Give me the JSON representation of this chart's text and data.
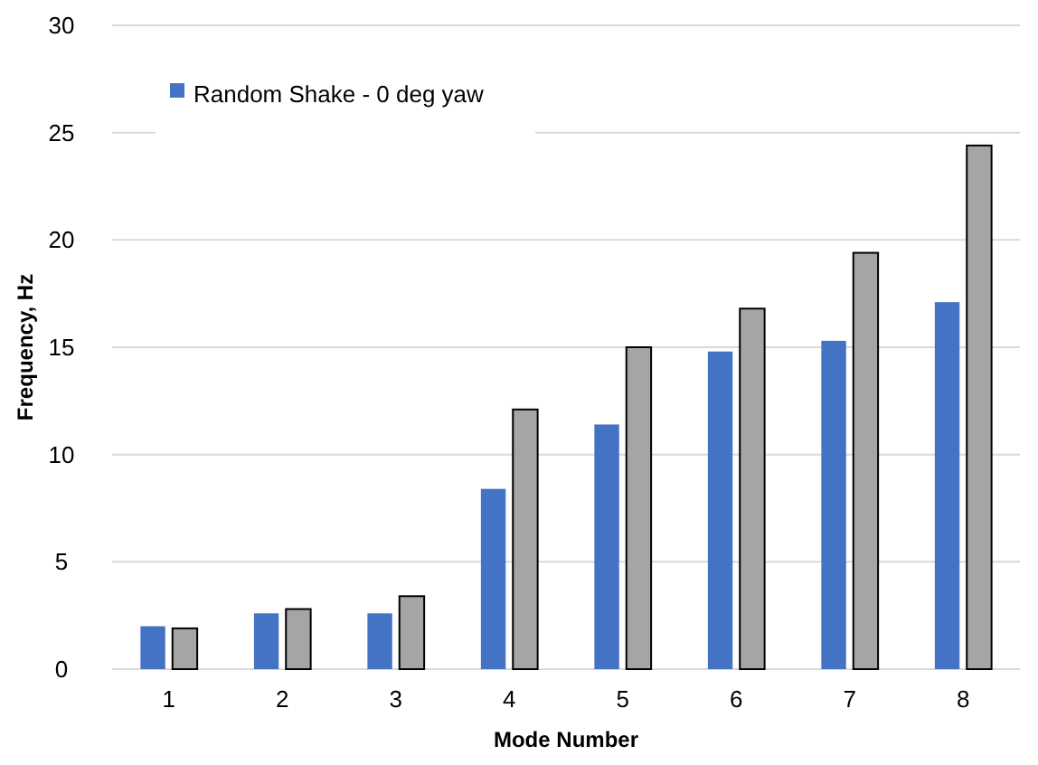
{
  "chart_data": {
    "type": "bar",
    "xlabel": "Mode Number",
    "ylabel": "Frequency, Hz",
    "categories": [
      "1",
      "2",
      "3",
      "4",
      "5",
      "6",
      "7",
      "8"
    ],
    "series": [
      {
        "name": "Random Shake - 0 deg yaw",
        "color": "#4472c4",
        "values": [
          2.0,
          2.6,
          2.6,
          8.4,
          11.4,
          14.8,
          15.3,
          17.1
        ]
      },
      {
        "color": "#a5a5a5",
        "values": [
          1.9,
          2.8,
          3.4,
          12.1,
          15.0,
          16.8,
          19.4,
          24.4
        ]
      }
    ],
    "ylim": [
      0,
      30
    ],
    "yticks": [
      0,
      5,
      10,
      15,
      20,
      25,
      30
    ],
    "grid": "y",
    "legend": "top left"
  }
}
